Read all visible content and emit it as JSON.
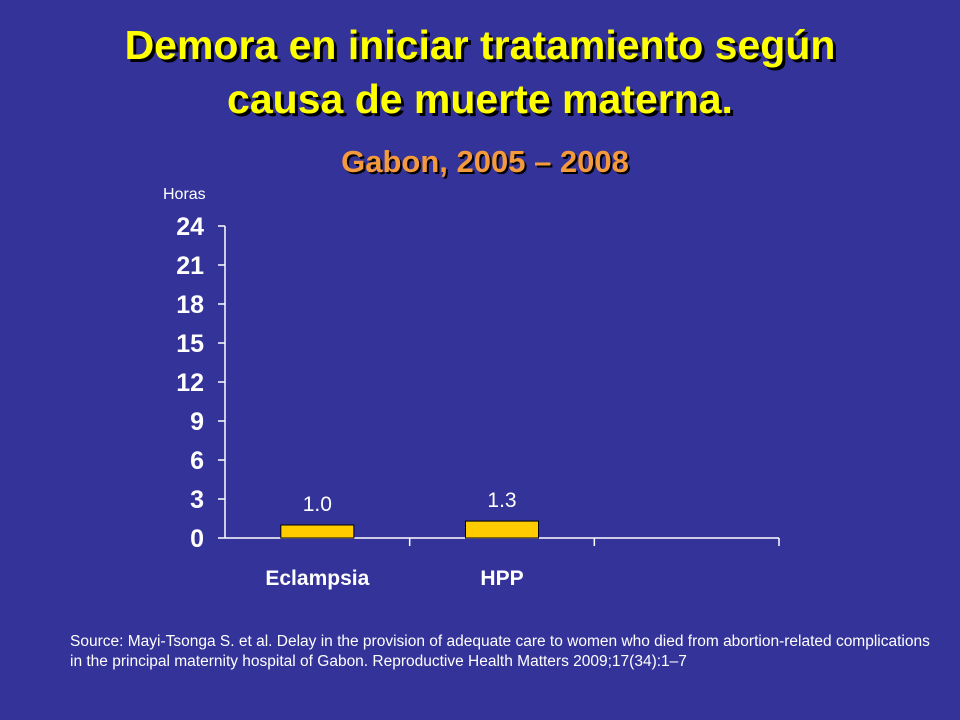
{
  "slide": {
    "title_lines": [
      "Demora en iniciar tratamiento según",
      "causa de muerte materna."
    ],
    "subtitle": "Gabon, 2005 – 2008",
    "source": "Source: Mayi-Tsonga S. et al. Delay in the provision of adequate care to women who died from abortion-related complications in the principal maternity hospital of Gabon. Reproductive Health Matters 2009;17(34):1–7"
  },
  "chart_data": {
    "type": "bar",
    "categories": [
      "Eclampsia",
      "HPP",
      ""
    ],
    "values": [
      1.0,
      1.3,
      null
    ],
    "value_labels": [
      "1.0",
      "1.3",
      ""
    ],
    "ylabel": "Horas",
    "ylim": [
      0,
      24
    ],
    "yticks": [
      0,
      3,
      6,
      9,
      12,
      15,
      18,
      21,
      24
    ],
    "grid": false,
    "bar_color": "#ffcc00",
    "axis_color": "#ffffff"
  }
}
